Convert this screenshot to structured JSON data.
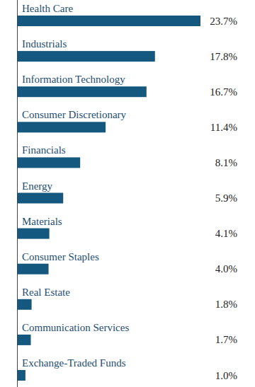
{
  "chart_data": {
    "type": "bar",
    "orientation": "horizontal",
    "categories": [
      "Health Care",
      "Industrials",
      "Information Technology",
      "Consumer Discretionary",
      "Financials",
      "Energy",
      "Materials",
      "Consumer Staples",
      "Real Estate",
      "Communication Services",
      "Exchange-Traded Funds"
    ],
    "values": [
      23.7,
      17.8,
      16.7,
      11.4,
      8.1,
      5.9,
      4.1,
      4.0,
      1.8,
      1.7,
      1.0
    ],
    "value_labels": [
      "23.7%",
      "17.8%",
      "16.7%",
      "11.4%",
      "8.1%",
      "5.9%",
      "4.1%",
      "4.0%",
      "1.8%",
      "1.7%",
      "1.0%"
    ],
    "color": "#15587f",
    "data_labels": true,
    "tick_labels": "y"
  }
}
